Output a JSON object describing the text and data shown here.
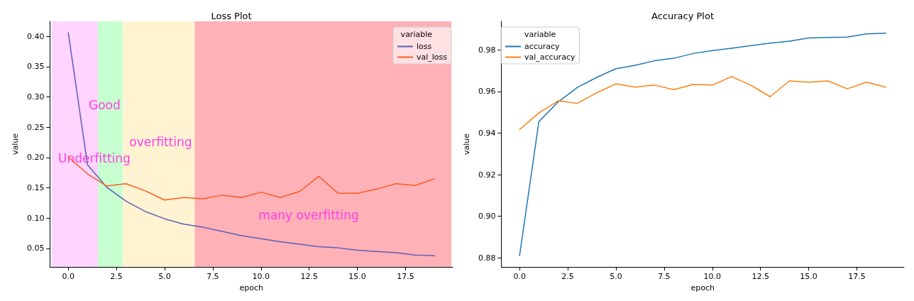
{
  "chart_data": [
    {
      "type": "line",
      "title": "Loss Plot",
      "xlabel": "epoch",
      "ylabel": "value",
      "legend_title": "variable",
      "legend": "top right",
      "grid": false,
      "x": [
        0,
        1,
        2,
        3,
        4,
        5,
        6,
        7,
        8,
        9,
        10,
        11,
        12,
        13,
        14,
        15,
        16,
        17,
        18,
        19
      ],
      "series": [
        {
          "name": "loss",
          "color": "#5b5fb5",
          "values": [
            0.406,
            0.188,
            0.151,
            0.128,
            0.111,
            0.099,
            0.09,
            0.085,
            0.078,
            0.071,
            0.066,
            0.061,
            0.057,
            0.053,
            0.051,
            0.047,
            0.045,
            0.043,
            0.039,
            0.038
          ]
        },
        {
          "name": "val_loss",
          "color": "#ff5a1f",
          "values": [
            0.201,
            0.173,
            0.153,
            0.157,
            0.145,
            0.13,
            0.134,
            0.132,
            0.138,
            0.134,
            0.143,
            0.134,
            0.144,
            0.169,
            0.141,
            0.141,
            0.148,
            0.157,
            0.154,
            0.165
          ]
        }
      ],
      "bands": [
        {
          "axis": "x",
          "from": -0.85,
          "to": 1.54,
          "color": "#ffd4ff",
          "label": "Underfitting"
        },
        {
          "axis": "x",
          "from": 1.54,
          "to": 2.84,
          "color": "#c8ffd0",
          "label": "Good"
        },
        {
          "axis": "x",
          "from": 2.84,
          "to": 6.56,
          "color": "#fff3d2",
          "label": "overfitting"
        },
        {
          "axis": "x",
          "from": 6.56,
          "to": 19.88,
          "color": "#ffb1b8",
          "label": "many overfitting"
        }
      ],
      "xlim": [
        -0.95,
        19.95
      ],
      "xticks": [
        {
          "value": 0,
          "label": "0.0"
        },
        {
          "value": 2.5,
          "label": "2.5"
        },
        {
          "value": 5,
          "label": "5.0"
        },
        {
          "value": 7.5,
          "label": "7.5"
        },
        {
          "value": 10,
          "label": "10.0"
        },
        {
          "value": 12.5,
          "label": "12.5"
        },
        {
          "value": 15,
          "label": "15.0"
        },
        {
          "value": 17.5,
          "label": "17.5"
        }
      ],
      "ylim": [
        0.0195,
        0.425
      ],
      "yticks": [
        {
          "value": 0.05,
          "label": "0.05"
        },
        {
          "value": 0.1,
          "label": "0.10"
        },
        {
          "value": 0.15,
          "label": "0.15"
        },
        {
          "value": 0.2,
          "label": "0.20"
        },
        {
          "value": 0.25,
          "label": "0.25"
        },
        {
          "value": 0.3,
          "label": "0.30"
        },
        {
          "value": 0.35,
          "label": "0.35"
        },
        {
          "value": 0.4,
          "label": "0.40"
        }
      ]
    },
    {
      "type": "line",
      "title": "Accuracy Plot",
      "xlabel": "epoch",
      "ylabel": "value",
      "legend_title": "variable",
      "legend": "top left",
      "grid": false,
      "x": [
        0,
        1,
        2,
        3,
        4,
        5,
        6,
        7,
        8,
        9,
        10,
        11,
        12,
        13,
        14,
        15,
        16,
        17,
        18,
        19
      ],
      "series": [
        {
          "name": "accuracy",
          "color": "#1f77b4",
          "values": [
            0.881,
            0.9455,
            0.955,
            0.962,
            0.9668,
            0.971,
            0.9726,
            0.9748,
            0.976,
            0.9783,
            0.9797,
            0.9808,
            0.9821,
            0.9833,
            0.9842,
            0.9858,
            0.986,
            0.9862,
            0.9877,
            0.9881
          ]
        },
        {
          "name": "val_accuracy",
          "color": "#ff7f0e",
          "values": [
            0.9417,
            0.9497,
            0.9555,
            0.9543,
            0.9594,
            0.9637,
            0.9621,
            0.9631,
            0.9609,
            0.9634,
            0.9631,
            0.9672,
            0.963,
            0.9575,
            0.9651,
            0.9645,
            0.9651,
            0.9613,
            0.9645,
            0.9621
          ]
        }
      ],
      "xlim": [
        -0.95,
        19.95
      ],
      "xticks": [
        {
          "value": 0,
          "label": "0.0"
        },
        {
          "value": 2.5,
          "label": "2.5"
        },
        {
          "value": 5,
          "label": "5.0"
        },
        {
          "value": 7.5,
          "label": "7.5"
        },
        {
          "value": 10,
          "label": "10.0"
        },
        {
          "value": 12.5,
          "label": "12.5"
        },
        {
          "value": 15,
          "label": "15.0"
        },
        {
          "value": 17.5,
          "label": "17.5"
        }
      ],
      "ylim": [
        0.8756,
        0.9938
      ],
      "yticks": [
        {
          "value": 0.88,
          "label": "0.88"
        },
        {
          "value": 0.9,
          "label": "0.90"
        },
        {
          "value": 0.92,
          "label": "0.92"
        },
        {
          "value": 0.94,
          "label": "0.94"
        },
        {
          "value": 0.96,
          "label": "0.96"
        },
        {
          "value": 0.98,
          "label": "0.98"
        }
      ]
    }
  ]
}
